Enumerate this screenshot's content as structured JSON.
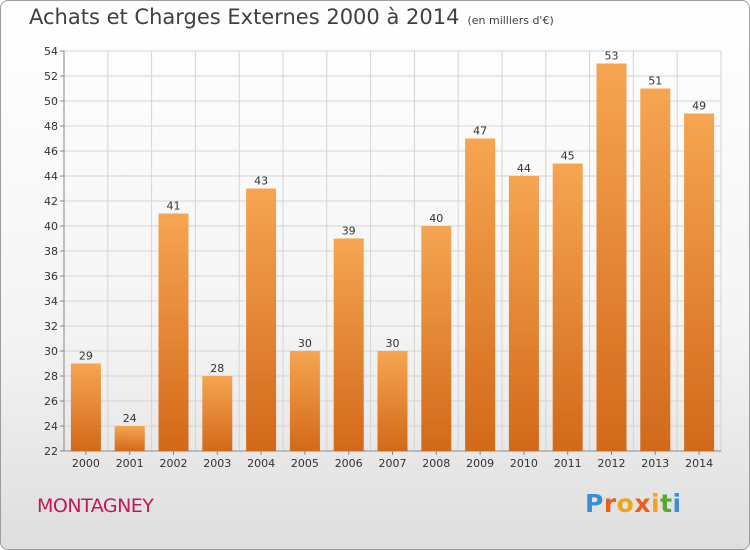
{
  "chart_title": "Achats et Charges Externes 2000 à 2014",
  "chart_unit": "(en milliers d'€)",
  "commune": "MONTAGNEY",
  "logo": {
    "text": "Proxiti",
    "letter_colors": [
      "#3b8fd8",
      "#e8601c",
      "#f2a31b",
      "#e8601c",
      "#f2a31b",
      "#5aa82e",
      "#3b8fd8"
    ]
  },
  "chart_data": {
    "type": "bar",
    "title": "Achats et Charges Externes 2000 à 2014",
    "subtitle": "(en milliers d'€)",
    "xlabel": "",
    "ylabel": "",
    "categories": [
      "2000",
      "2001",
      "2002",
      "2003",
      "2004",
      "2005",
      "2006",
      "2007",
      "2008",
      "2009",
      "2010",
      "2011",
      "2012",
      "2013",
      "2014"
    ],
    "values": [
      29,
      24,
      41,
      28,
      43,
      30,
      39,
      30,
      40,
      47,
      44,
      45,
      53,
      51,
      49
    ],
    "ylim": [
      22,
      54
    ],
    "yticks": [
      22,
      24,
      26,
      28,
      30,
      32,
      34,
      36,
      38,
      40,
      42,
      44,
      46,
      48,
      50,
      52,
      54
    ],
    "grid": true,
    "legend": "none",
    "bar_color_top": "#f6a552",
    "bar_color_bottom": "#d2691a"
  }
}
